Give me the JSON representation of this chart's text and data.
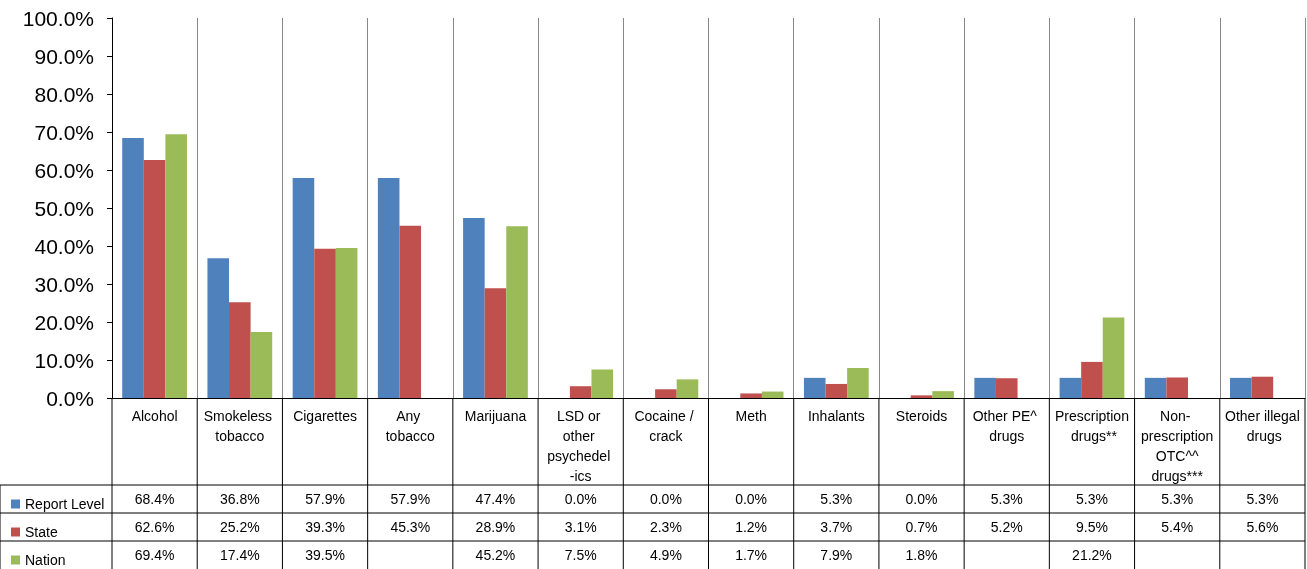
{
  "chart_data": {
    "type": "bar",
    "categories": [
      "Alcohol",
      "Smokeless tobacco",
      "Cigarettes",
      "Any tobacco",
      "Marijuana",
      "LSD or other psychedel -ics",
      "Cocaine / crack",
      "Meth",
      "Inhalants",
      "Steroids",
      "Other PE^ drugs",
      "Prescription drugs**",
      "Non- prescription OTC^^ drugs***",
      "Other illegal drugs"
    ],
    "series": [
      {
        "name": "Report Level",
        "color": "#4f81bd",
        "values": [
          68.4,
          36.8,
          57.9,
          57.9,
          47.4,
          0.0,
          0.0,
          0.0,
          5.3,
          0.0,
          5.3,
          5.3,
          5.3,
          5.3
        ],
        "value_labels": [
          "68.4%",
          "36.8%",
          "57.9%",
          "57.9%",
          "47.4%",
          "0.0%",
          "0.0%",
          "0.0%",
          "5.3%",
          "0.0%",
          "5.3%",
          "5.3%",
          "5.3%",
          "5.3%"
        ]
      },
      {
        "name": "State",
        "color": "#c0504d",
        "values": [
          62.6,
          25.2,
          39.3,
          45.3,
          28.9,
          3.1,
          2.3,
          1.2,
          3.7,
          0.7,
          5.2,
          9.5,
          5.4,
          5.6
        ],
        "value_labels": [
          "62.6%",
          "25.2%",
          "39.3%",
          "45.3%",
          "28.9%",
          "3.1%",
          "2.3%",
          "1.2%",
          "3.7%",
          "0.7%",
          "5.2%",
          "9.5%",
          "5.4%",
          "5.6%"
        ]
      },
      {
        "name": "Nation",
        "color": "#9bbb59",
        "values": [
          69.4,
          17.4,
          39.5,
          null,
          45.2,
          7.5,
          4.9,
          1.7,
          7.9,
          1.8,
          null,
          21.2,
          null,
          null
        ],
        "value_labels": [
          "69.4%",
          "17.4%",
          "39.5%",
          null,
          "45.2%",
          "7.5%",
          "4.9%",
          "1.7%",
          "7.9%",
          "1.8%",
          null,
          "21.2%",
          null,
          null
        ]
      }
    ],
    "ylim": [
      0,
      100
    ],
    "yticks": [
      {
        "value": 0,
        "label": "0.0%"
      },
      {
        "value": 10,
        "label": "10.0%"
      },
      {
        "value": 20,
        "label": "20.0%"
      },
      {
        "value": 30,
        "label": "30.0%"
      },
      {
        "value": 40,
        "label": "40.0%"
      },
      {
        "value": 50,
        "label": "50.0%"
      },
      {
        "value": 60,
        "label": "60.0%"
      },
      {
        "value": 70,
        "label": "70.0%"
      },
      {
        "value": 80,
        "label": "80.0%"
      },
      {
        "value": 90,
        "label": "90.0%"
      },
      {
        "value": 100,
        "label": "100.0%"
      }
    ],
    "grid": "x",
    "legend": "bottom left"
  }
}
